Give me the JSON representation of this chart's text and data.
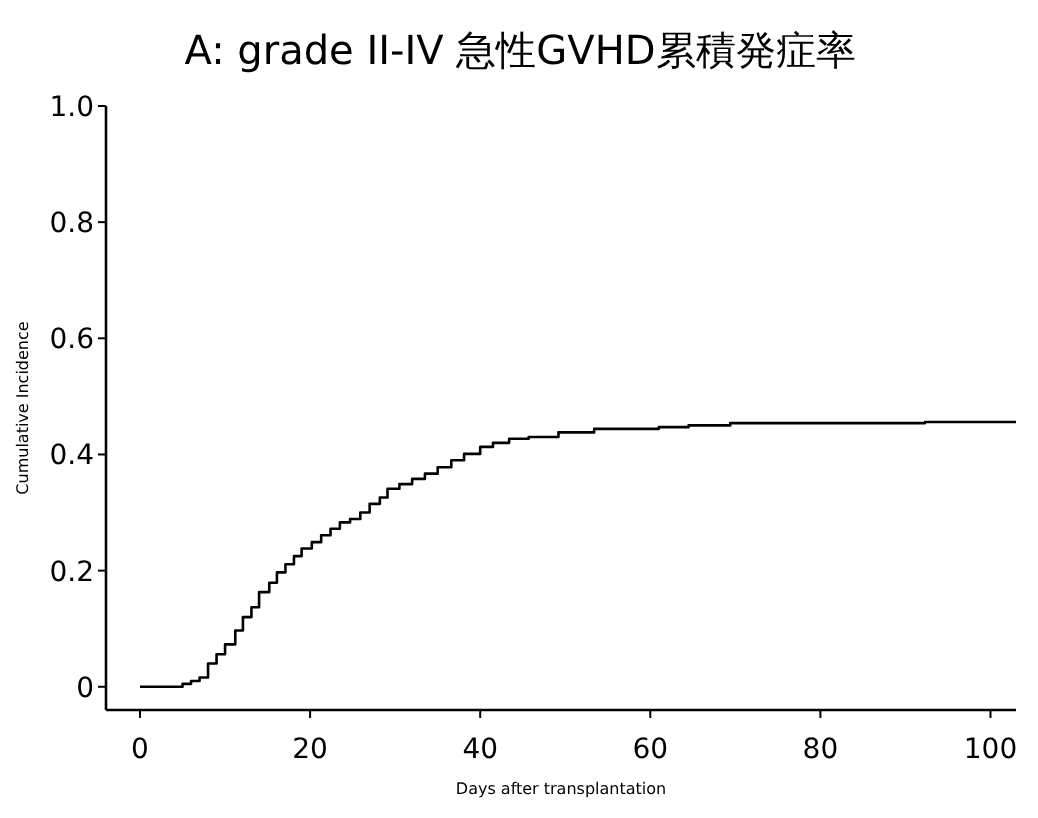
{
  "chart_data": {
    "type": "step",
    "title": "A: grade II-IV 急性GVHD累積発症率",
    "xlabel": "Days after transplantation",
    "ylabel": "Cumulative Incidence",
    "xlim": [
      -4,
      103
    ],
    "ylim": [
      -0.04,
      1.0
    ],
    "xticks": [
      0,
      20,
      40,
      60,
      80,
      100
    ],
    "yticks": [
      {
        "value": 0,
        "label": "0"
      },
      {
        "value": 0.2,
        "label": "0.2"
      },
      {
        "value": 0.4,
        "label": "0.4"
      },
      {
        "value": 0.6,
        "label": "0.6"
      },
      {
        "value": 0.8,
        "label": "0.8"
      },
      {
        "value": 1.0,
        "label": "1.0"
      }
    ],
    "series": [
      {
        "color": "#000000",
        "x": [
          0,
          5,
          6,
          7,
          8,
          9,
          10,
          11.2,
          12.1,
          13.1,
          14,
          15.2,
          16.1,
          17.1,
          18.1,
          19,
          20.2,
          21.3,
          22.4,
          23.5,
          24.7,
          25.9,
          27,
          28.2,
          29.1,
          30.5,
          32,
          33.5,
          35,
          36.6,
          38.1,
          40,
          41.5,
          43.4,
          45.7,
          49.2,
          53.4,
          61,
          64.5,
          69.4,
          92.3,
          103
        ],
        "values": [
          0,
          0.005,
          0.01,
          0.016,
          0.04,
          0.056,
          0.073,
          0.097,
          0.12,
          0.137,
          0.163,
          0.179,
          0.197,
          0.211,
          0.225,
          0.238,
          0.249,
          0.261,
          0.272,
          0.283,
          0.289,
          0.3,
          0.315,
          0.326,
          0.341,
          0.349,
          0.358,
          0.367,
          0.378,
          0.39,
          0.401,
          0.413,
          0.42,
          0.427,
          0.43,
          0.438,
          0.444,
          0.447,
          0.45,
          0.454,
          0.456,
          0.456
        ]
      }
    ]
  }
}
